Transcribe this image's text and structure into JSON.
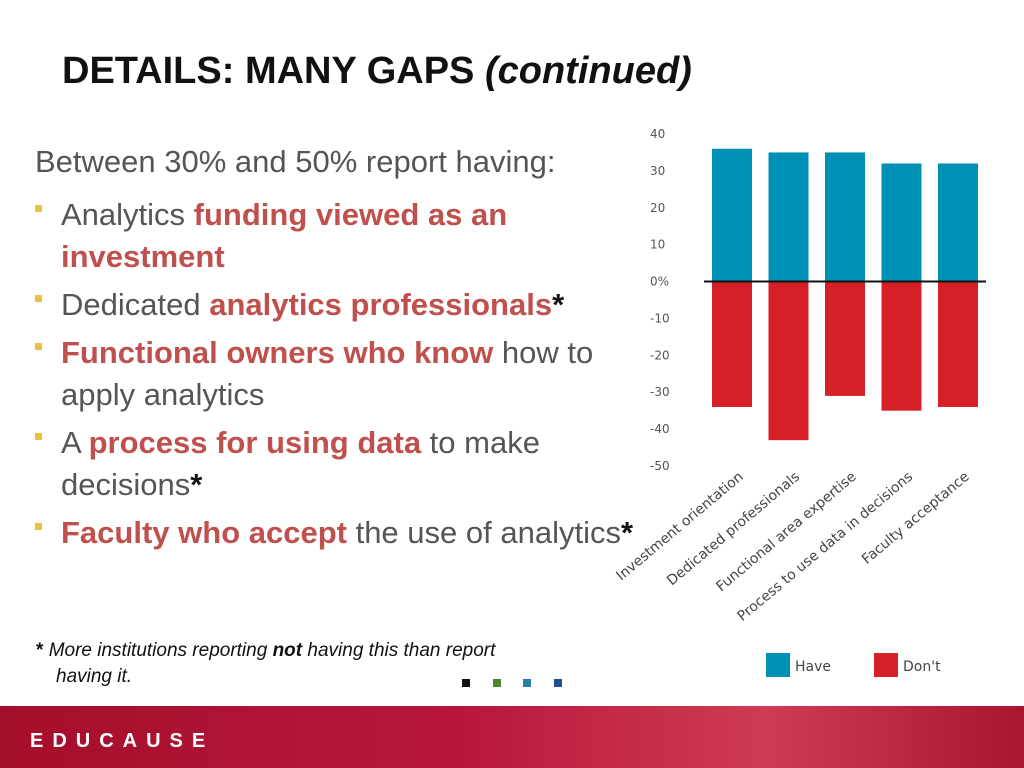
{
  "slide": {
    "title": "DETAILS: MANY GAPS ",
    "title_italic": "(continued)",
    "intro": "Between 30% and 50% report having:",
    "bullets": [
      {
        "a": "Analytics ",
        "b": "funding viewed as an investment",
        "c": "",
        "d": ""
      },
      {
        "a": "Dedicated ",
        "b": "analytics professionals",
        "c": "",
        "d": "*"
      },
      {
        "a": "",
        "b": "Functional owners who know",
        "c": " how to apply analytics",
        "d": ""
      },
      {
        "a": "A ",
        "b": "process for using data",
        "c": " to make decisions",
        "d": "*"
      },
      {
        "a": "",
        "b": "Faculty who accept",
        "c": " the use of analytics",
        "d": "*"
      }
    ],
    "footnote": {
      "star": "* ",
      "part1": "More institutions reporting ",
      "bold": "not",
      "part2": " having this than report",
      "line2": "having it."
    },
    "squares": [
      "#111111",
      "#4d8a2e",
      "#2b7fa6",
      "#1f4f8f"
    ],
    "logo": "EDUCAUSE"
  },
  "colors": {
    "accent": "#c0504d",
    "bullet": "#e8c23a",
    "have": "#0090b5",
    "dont": "#d71f27"
  },
  "chart_data": {
    "type": "bar",
    "categories": [
      "Investment orientation",
      "Dedicated professionals",
      "Functional area expertise",
      "Process to use data in decisions",
      "Faculty acceptance"
    ],
    "series": [
      {
        "name": "Have",
        "color": "#0090b5",
        "values": [
          36,
          35,
          35,
          32,
          32
        ]
      },
      {
        "name": "Don't",
        "color": "#d71f27",
        "values": [
          -34,
          -43,
          -31,
          -35,
          -34
        ]
      }
    ],
    "yticks": [
      "40",
      "30",
      "20",
      "10",
      "0%",
      "-10",
      "-20",
      "-30",
      "-40",
      "-50"
    ],
    "ylim": [
      -50,
      40
    ],
    "grid": false,
    "legend": "bottom-right"
  }
}
